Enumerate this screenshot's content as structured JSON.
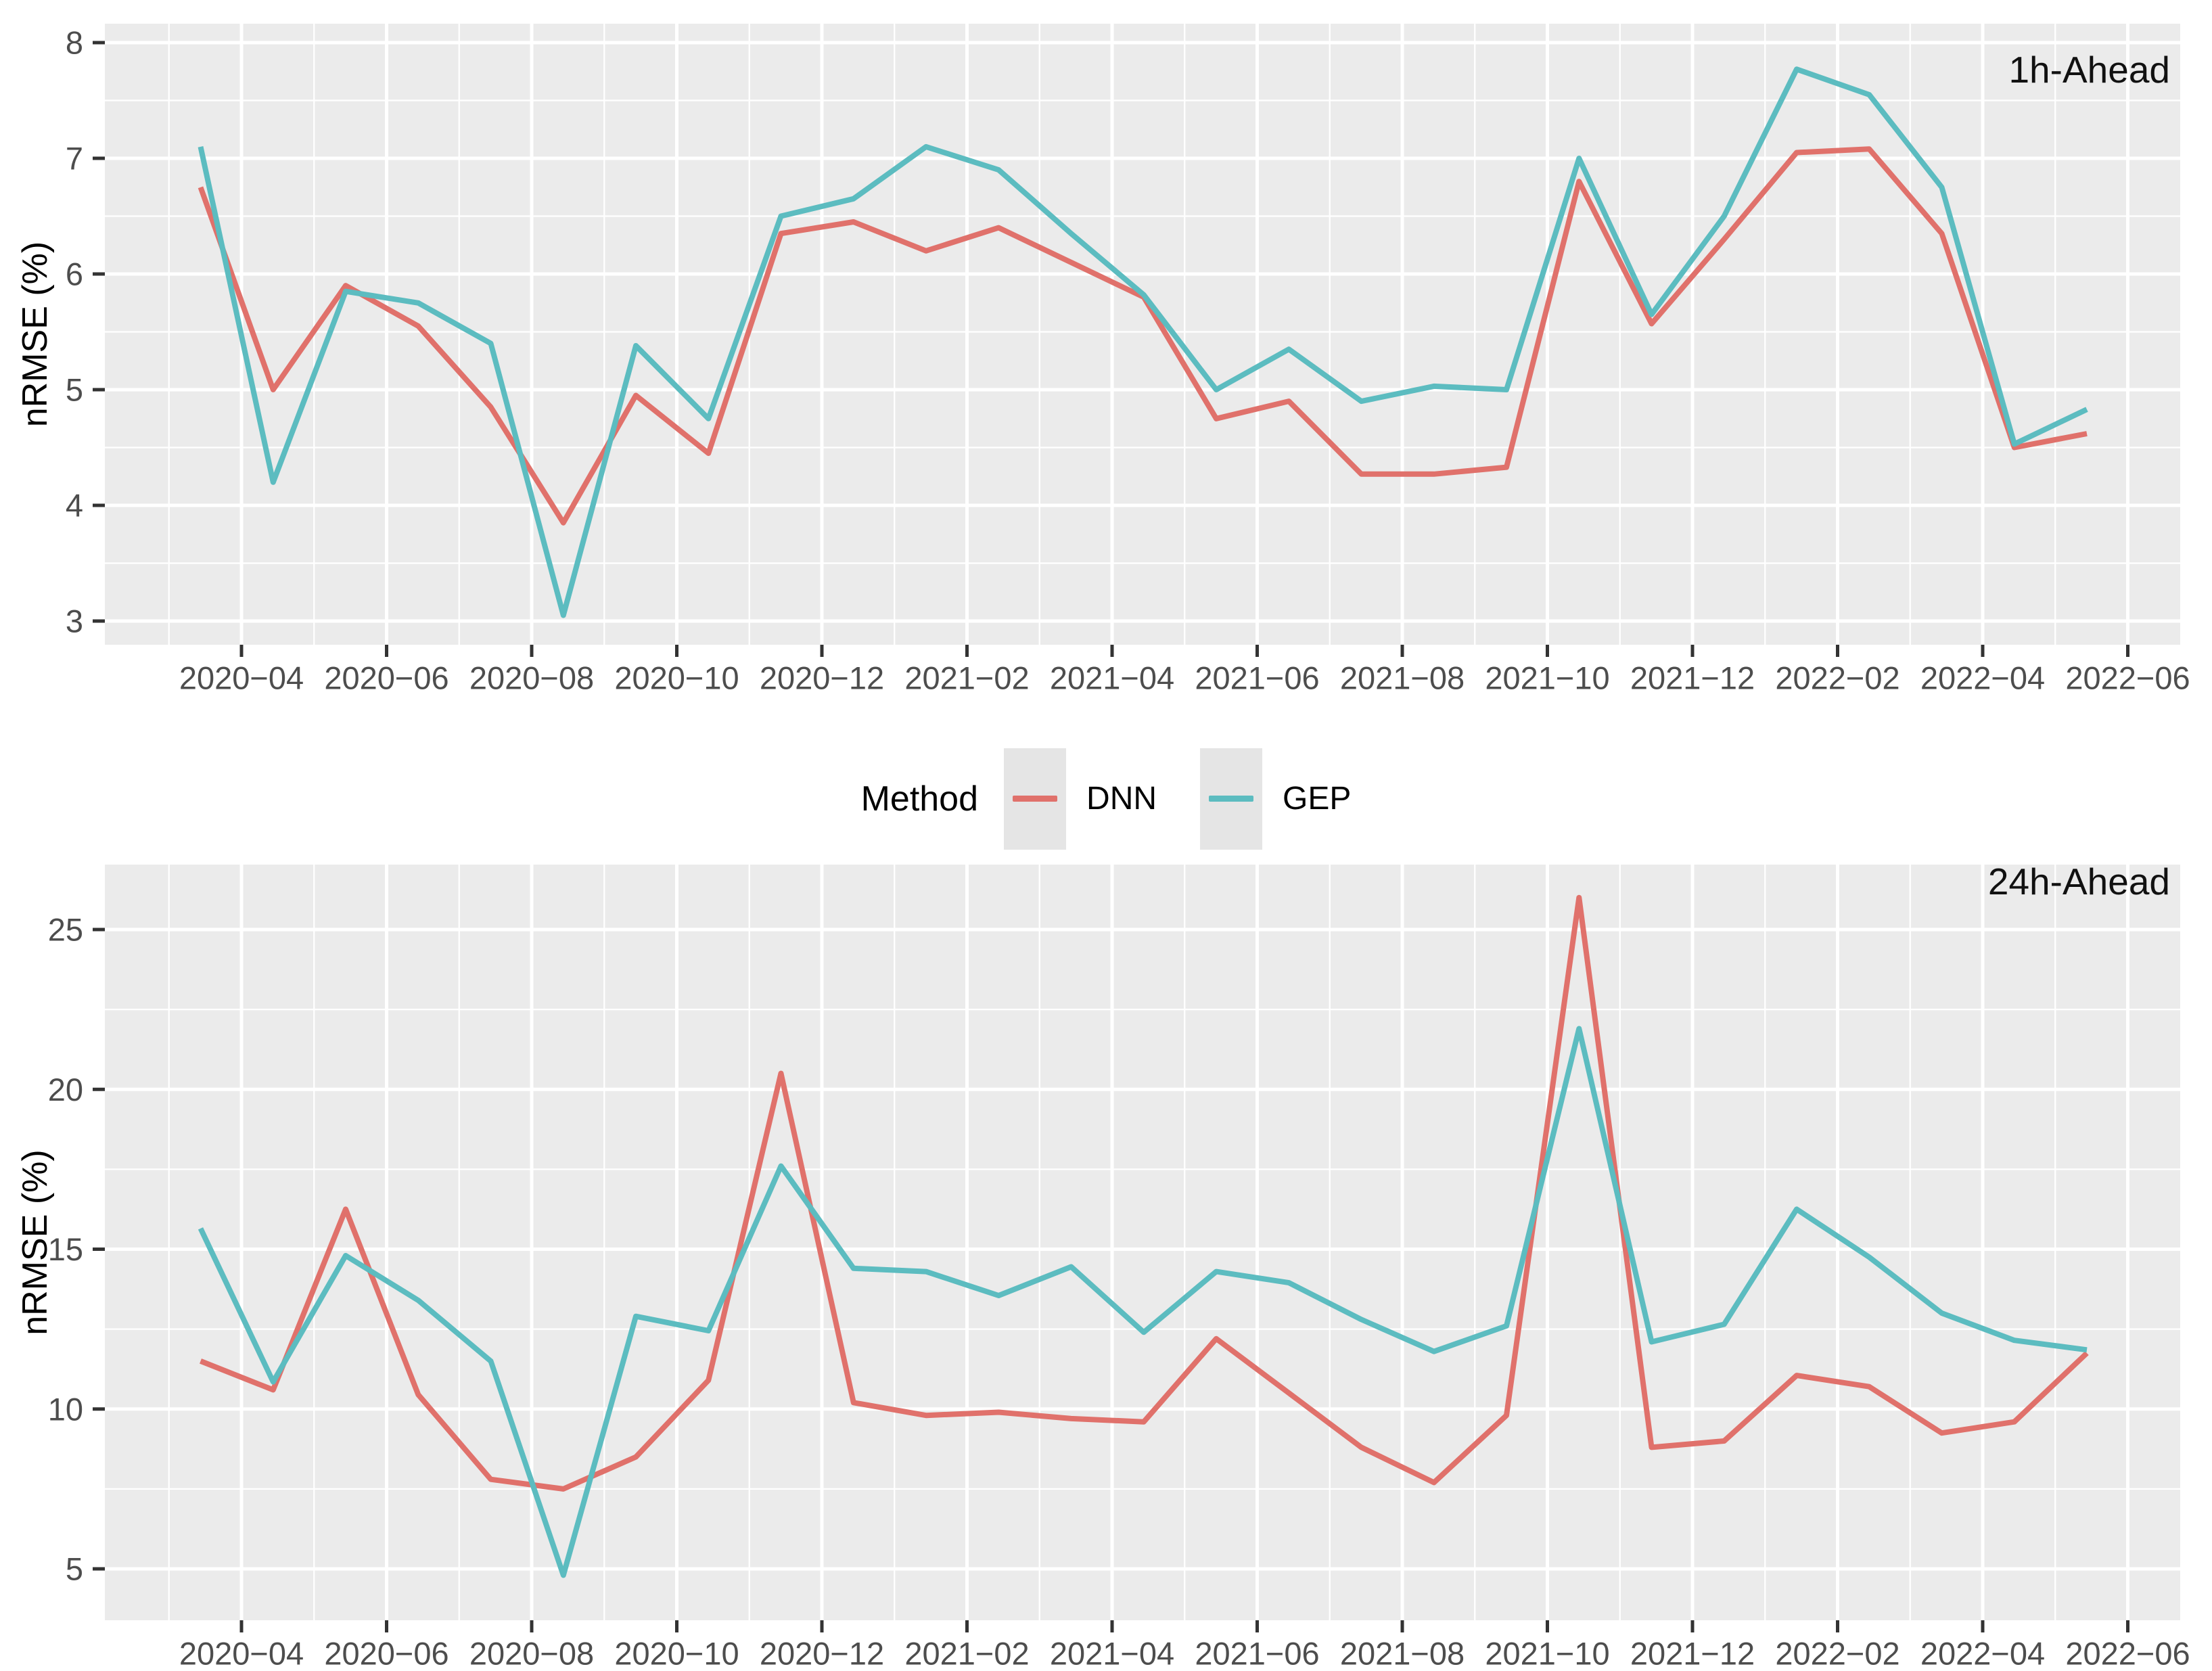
{
  "figure": {
    "background": "#FFFFFF",
    "panel_background": "#EBEBEB",
    "grid_color": "#FFFFFF",
    "tick_mark_color": "#333333",
    "tick_label_color": "#4D4D4D",
    "text_color": "#000000",
    "dnn_color": "#E0716B",
    "gep_color": "#5CBCC0"
  },
  "legend": {
    "title": "Method",
    "entries": [
      {
        "label": "DNN",
        "color": "#E0716B"
      },
      {
        "label": "GEP",
        "color": "#5CBCC0"
      }
    ]
  },
  "chart_data": [
    {
      "type": "line",
      "title": "1h-Ahead",
      "ylabel": "nRMSE (%)",
      "xlabel": "",
      "grid": true,
      "legend_position": "shared-center-between-panels",
      "panel_label_position": "top-right",
      "x": [
        "2020-03",
        "2020-04",
        "2020-05",
        "2020-06",
        "2020-07",
        "2020-08",
        "2020-09",
        "2020-10",
        "2020-11",
        "2020-12",
        "2021-01",
        "2021-02",
        "2021-03",
        "2021-04",
        "2021-05",
        "2021-06",
        "2021-07",
        "2021-08",
        "2021-09",
        "2021-10",
        "2021-11",
        "2021-12",
        "2022-01",
        "2022-02",
        "2022-03",
        "2022-04",
        "2022-05"
      ],
      "x_tick_labels": [
        "2020−04",
        "2020−06",
        "2020−08",
        "2020−10",
        "2020−12",
        "2021−02",
        "2021−04",
        "2021−06",
        "2021−08",
        "2021−10",
        "2021−12",
        "2022−02",
        "2022−04",
        "2022−06"
      ],
      "yticks": [
        3,
        4,
        5,
        6,
        7,
        8
      ],
      "ylim": [
        2.8,
        8.16
      ],
      "series": [
        {
          "name": "DNN",
          "color": "#E0716B",
          "values": [
            6.75,
            5.0,
            5.9,
            5.55,
            4.85,
            3.85,
            4.95,
            4.45,
            6.35,
            6.45,
            6.2,
            6.4,
            6.1,
            5.8,
            4.75,
            4.9,
            4.27,
            4.27,
            4.33,
            6.8,
            5.57,
            6.3,
            7.05,
            7.08,
            6.35,
            4.5,
            4.62
          ]
        },
        {
          "name": "GEP",
          "color": "#5CBCC0",
          "values": [
            7.1,
            4.2,
            5.85,
            5.75,
            5.4,
            3.05,
            5.38,
            4.75,
            6.5,
            6.65,
            7.1,
            6.9,
            6.35,
            5.82,
            5.0,
            5.35,
            4.9,
            5.03,
            5.0,
            7.0,
            5.65,
            6.5,
            7.77,
            7.55,
            6.75,
            4.53,
            4.83
          ]
        }
      ]
    },
    {
      "type": "line",
      "title": "24h-Ahead",
      "ylabel": "nRMSE (%)",
      "xlabel": "",
      "grid": true,
      "legend_position": "shared-center-between-panels",
      "panel_label_position": "top-right",
      "x": [
        "2020-03",
        "2020-04",
        "2020-05",
        "2020-06",
        "2020-07",
        "2020-08",
        "2020-09",
        "2020-10",
        "2020-11",
        "2020-12",
        "2021-01",
        "2021-02",
        "2021-03",
        "2021-04",
        "2021-05",
        "2021-06",
        "2021-07",
        "2021-08",
        "2021-09",
        "2021-10",
        "2021-11",
        "2021-12",
        "2022-01",
        "2022-02",
        "2022-03",
        "2022-04",
        "2022-05"
      ],
      "x_tick_labels": [
        "2020−04",
        "2020−06",
        "2020−08",
        "2020−10",
        "2020−12",
        "2021−02",
        "2021−04",
        "2021−06",
        "2021−08",
        "2021−10",
        "2021−12",
        "2022−02",
        "2022−04",
        "2022−06"
      ],
      "yticks": [
        5,
        10,
        15,
        20,
        25
      ],
      "ylim": [
        3.4,
        27.0
      ],
      "series": [
        {
          "name": "DNN",
          "color": "#E0716B",
          "values": [
            11.5,
            10.6,
            16.25,
            10.45,
            7.8,
            7.5,
            8.5,
            10.9,
            20.5,
            10.2,
            9.8,
            9.9,
            9.7,
            9.6,
            12.2,
            10.5,
            8.8,
            7.7,
            9.8,
            26.0,
            8.8,
            9.0,
            11.05,
            10.7,
            9.25,
            9.6,
            11.75
          ]
        },
        {
          "name": "GEP",
          "color": "#5CBCC0",
          "values": [
            15.65,
            10.85,
            14.8,
            13.4,
            11.5,
            4.8,
            12.9,
            12.45,
            17.6,
            14.4,
            14.3,
            13.55,
            14.45,
            12.4,
            14.3,
            13.95,
            12.8,
            11.8,
            12.6,
            21.9,
            12.1,
            12.65,
            16.25,
            14.75,
            13.0,
            12.15,
            11.85
          ]
        }
      ]
    }
  ]
}
